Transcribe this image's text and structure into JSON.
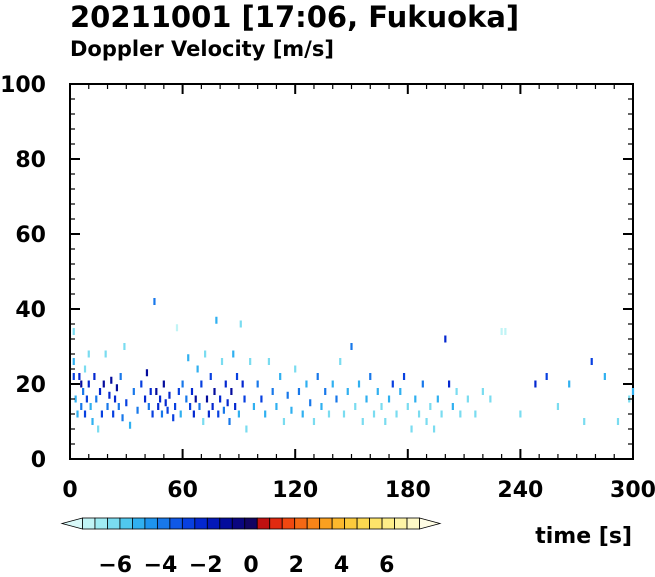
{
  "title": "20211001 [17:06, Fukuoka]",
  "subtitle": "Doppler Velocity [m/s]",
  "chart_data": {
    "type": "heatmap",
    "title": "20211001 [17:06, Fukuoka]",
    "subtitle": "Doppler Velocity [m/s]",
    "xlabel": "time [s]",
    "ylabel": "",
    "xlim": [
      0,
      300
    ],
    "ylim": [
      0,
      100
    ],
    "x_ticks": [
      0,
      60,
      120,
      180,
      240,
      300
    ],
    "y_ticks": [
      0,
      20,
      40,
      60,
      80,
      100
    ],
    "grid": false,
    "colorbar": {
      "ticks": [
        -6,
        -4,
        -2,
        0,
        2,
        4,
        6
      ],
      "tick_labels": [
        "−6",
        "−4",
        "−2",
        "0",
        "2",
        "4",
        "6"
      ],
      "min": -8,
      "max": 8,
      "colors": [
        "#d8f8f8",
        "#c0f4f6",
        "#a0ecf4",
        "#7adcf0",
        "#50c8ee",
        "#30b0f0",
        "#1e94ee",
        "#1878ea",
        "#1058e6",
        "#0840e0",
        "#0428d0",
        "#0418b8",
        "#040c9c",
        "#0a0680",
        "#120462",
        "#c01010",
        "#e02a10",
        "#f04810",
        "#f46814",
        "#f88418",
        "#faa020",
        "#fcb82c",
        "#fcca3c",
        "#fcd850",
        "#fde46a",
        "#feee88",
        "#fef4a6",
        "#fef8c6",
        "#fefce4"
      ]
    },
    "points": [
      [
        2,
        34,
        -6
      ],
      [
        2,
        26,
        -5
      ],
      [
        2,
        22,
        -3
      ],
      [
        3,
        16,
        -5
      ],
      [
        4,
        12,
        -5
      ],
      [
        5,
        22,
        -2
      ],
      [
        6,
        20,
        -1
      ],
      [
        6,
        14,
        -4
      ],
      [
        7,
        18,
        -4
      ],
      [
        8,
        24,
        -6
      ],
      [
        8,
        12,
        -3
      ],
      [
        9,
        16,
        -3
      ],
      [
        10,
        20,
        -2
      ],
      [
        10,
        28,
        -6
      ],
      [
        11,
        14,
        -5
      ],
      [
        12,
        10,
        -5
      ],
      [
        13,
        22,
        -2
      ],
      [
        14,
        16,
        -4
      ],
      [
        15,
        8,
        -6
      ],
      [
        16,
        18,
        -2
      ],
      [
        17,
        12,
        -3
      ],
      [
        18,
        20,
        -1
      ],
      [
        19,
        28,
        -6
      ],
      [
        20,
        14,
        -4
      ],
      [
        21,
        17,
        -2
      ],
      [
        22,
        21,
        -1
      ],
      [
        23,
        12,
        -3
      ],
      [
        24,
        16,
        -2
      ],
      [
        25,
        19,
        -1
      ],
      [
        26,
        14,
        -4
      ],
      [
        27,
        22,
        -4
      ],
      [
        28,
        11,
        -4
      ],
      [
        29,
        30,
        -6
      ],
      [
        30,
        15,
        -3
      ],
      [
        32,
        9,
        -5
      ],
      [
        34,
        18,
        -4
      ],
      [
        36,
        13,
        -4
      ],
      [
        38,
        20,
        -3
      ],
      [
        40,
        16,
        -2
      ],
      [
        41,
        23,
        -1
      ],
      [
        42,
        14,
        -4
      ],
      [
        43,
        18,
        -2
      ],
      [
        44,
        12,
        -3
      ],
      [
        45,
        42,
        -4
      ],
      [
        46,
        18,
        -1
      ],
      [
        47,
        14,
        -2
      ],
      [
        48,
        16,
        -2
      ],
      [
        49,
        12,
        -4
      ],
      [
        50,
        20,
        -1
      ],
      [
        51,
        15,
        -2
      ],
      [
        52,
        13,
        -3
      ],
      [
        53,
        17,
        -2
      ],
      [
        55,
        11,
        -3
      ],
      [
        56,
        14,
        -3
      ],
      [
        57,
        35,
        -7
      ],
      [
        58,
        18,
        -3
      ],
      [
        59,
        12,
        -5
      ],
      [
        60,
        20,
        -4
      ],
      [
        62,
        16,
        -4
      ],
      [
        63,
        27,
        -5
      ],
      [
        64,
        14,
        -3
      ],
      [
        65,
        18,
        -2
      ],
      [
        66,
        12,
        -2
      ],
      [
        67,
        16,
        -1
      ],
      [
        68,
        24,
        -5
      ],
      [
        69,
        14,
        -4
      ],
      [
        70,
        20,
        -3
      ],
      [
        71,
        10,
        -6
      ],
      [
        72,
        28,
        -6
      ],
      [
        73,
        16,
        -1
      ],
      [
        74,
        12,
        -2
      ],
      [
        75,
        22,
        -3
      ],
      [
        76,
        14,
        -2
      ],
      [
        77,
        18,
        -1
      ],
      [
        78,
        37,
        -5
      ],
      [
        79,
        12,
        -3
      ],
      [
        80,
        16,
        -2
      ],
      [
        81,
        26,
        -6
      ],
      [
        82,
        13,
        -4
      ],
      [
        83,
        20,
        -2
      ],
      [
        84,
        15,
        -2
      ],
      [
        85,
        10,
        -4
      ],
      [
        86,
        18,
        -1
      ],
      [
        87,
        28,
        -5
      ],
      [
        88,
        14,
        -2
      ],
      [
        89,
        22,
        -3
      ],
      [
        90,
        12,
        -5
      ],
      [
        91,
        36,
        -6
      ],
      [
        92,
        20,
        -2
      ],
      [
        93,
        16,
        -3
      ],
      [
        94,
        8,
        -6
      ],
      [
        96,
        26,
        -6
      ],
      [
        98,
        14,
        -5
      ],
      [
        100,
        20,
        -4
      ],
      [
        102,
        16,
        -3
      ],
      [
        104,
        12,
        -5
      ],
      [
        106,
        26,
        -6
      ],
      [
        108,
        18,
        -4
      ],
      [
        110,
        14,
        -5
      ],
      [
        112,
        22,
        -5
      ],
      [
        114,
        10,
        -6
      ],
      [
        116,
        17,
        -4
      ],
      [
        118,
        13,
        -5
      ],
      [
        120,
        24,
        -6
      ],
      [
        122,
        18,
        -4
      ],
      [
        124,
        12,
        -5
      ],
      [
        126,
        20,
        -5
      ],
      [
        128,
        15,
        -4
      ],
      [
        130,
        10,
        -6
      ],
      [
        132,
        22,
        -4
      ],
      [
        134,
        14,
        -5
      ],
      [
        136,
        18,
        -4
      ],
      [
        138,
        12,
        -6
      ],
      [
        140,
        20,
        -5
      ],
      [
        142,
        16,
        -4
      ],
      [
        144,
        26,
        -6
      ],
      [
        146,
        12,
        -6
      ],
      [
        148,
        18,
        -5
      ],
      [
        150,
        30,
        -4
      ],
      [
        152,
        14,
        -6
      ],
      [
        154,
        20,
        -5
      ],
      [
        156,
        10,
        -6
      ],
      [
        158,
        16,
        -5
      ],
      [
        160,
        22,
        -4
      ],
      [
        162,
        12,
        -6
      ],
      [
        164,
        18,
        -5
      ],
      [
        166,
        14,
        -6
      ],
      [
        168,
        10,
        -6
      ],
      [
        170,
        16,
        -5
      ],
      [
        172,
        20,
        -3
      ],
      [
        174,
        12,
        -6
      ],
      [
        176,
        18,
        -5
      ],
      [
        178,
        22,
        -3
      ],
      [
        180,
        14,
        -6
      ],
      [
        182,
        8,
        -6
      ],
      [
        184,
        16,
        -5
      ],
      [
        186,
        12,
        -6
      ],
      [
        188,
        20,
        -4
      ],
      [
        190,
        10,
        -6
      ],
      [
        192,
        14,
        -6
      ],
      [
        194,
        8,
        -6
      ],
      [
        196,
        16,
        -5
      ],
      [
        198,
        12,
        -6
      ],
      [
        200,
        32,
        -2
      ],
      [
        202,
        20,
        -2
      ],
      [
        204,
        14,
        -5
      ],
      [
        206,
        18,
        -6
      ],
      [
        208,
        12,
        -6
      ],
      [
        212,
        16,
        -6
      ],
      [
        216,
        12,
        -6
      ],
      [
        220,
        18,
        -6
      ],
      [
        224,
        16,
        -6
      ],
      [
        230,
        34,
        -7
      ],
      [
        232,
        34,
        -7
      ],
      [
        240,
        12,
        -6
      ],
      [
        248,
        20,
        -2
      ],
      [
        254,
        22,
        -3
      ],
      [
        260,
        14,
        -6
      ],
      [
        266,
        20,
        -5
      ],
      [
        274,
        10,
        -6
      ],
      [
        278,
        26,
        -3
      ],
      [
        285,
        22,
        -5
      ],
      [
        292,
        10,
        -6
      ],
      [
        298,
        16,
        -6
      ],
      [
        300,
        18,
        -5
      ]
    ]
  }
}
